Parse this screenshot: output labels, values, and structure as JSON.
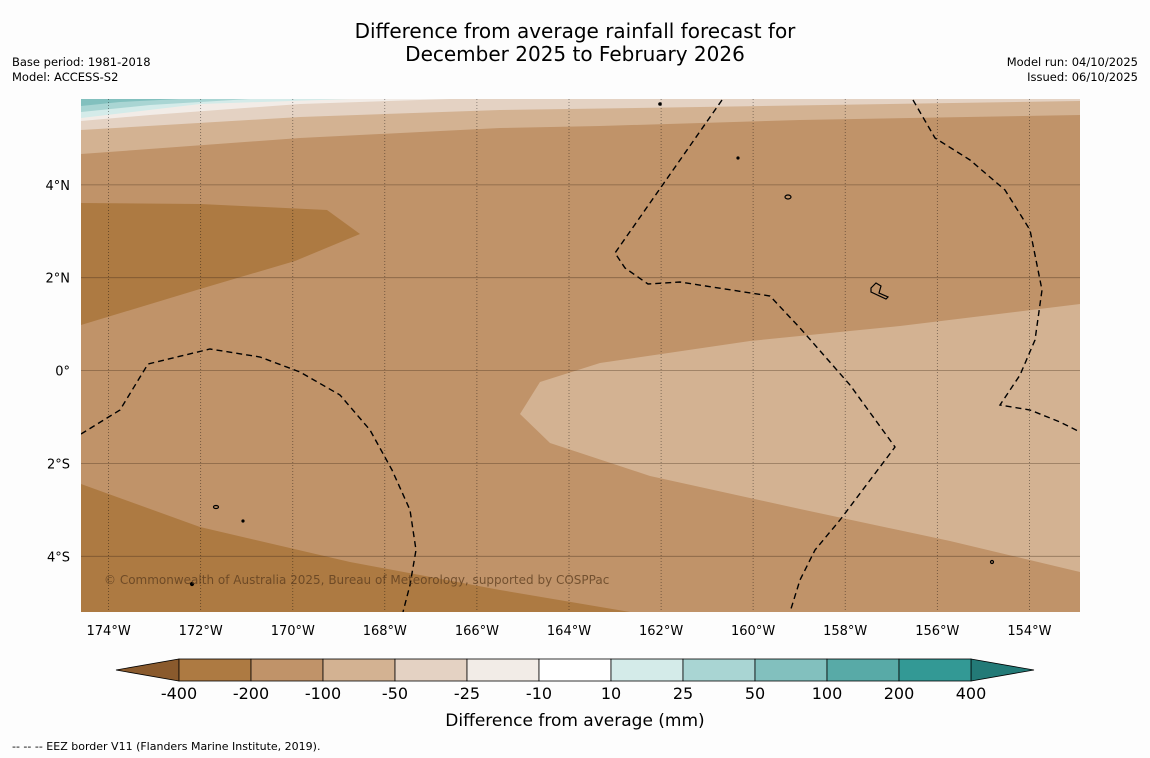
{
  "title": {
    "line1": "Difference from average rainfall forecast for",
    "line2": "December 2025 to February 2026"
  },
  "meta_left": {
    "base_period": "Base period: 1981-2018",
    "model": "Model: ACCESS-S2"
  },
  "meta_right": {
    "model_run": "Model run: 04/10/2025",
    "issued": "Issued: 06/10/2025"
  },
  "map": {
    "lon_range": [
      -174.6,
      -152.9
    ],
    "lat_range": [
      -5.2,
      5.85
    ],
    "lon_ticks": [
      {
        "value": -174,
        "label": "174°W"
      },
      {
        "value": -172,
        "label": "172°W"
      },
      {
        "value": -170,
        "label": "170°W"
      },
      {
        "value": -168,
        "label": "168°W"
      },
      {
        "value": -166,
        "label": "166°W"
      },
      {
        "value": -164,
        "label": "164°W"
      },
      {
        "value": -162,
        "label": "162°W"
      },
      {
        "value": -160,
        "label": "160°W"
      },
      {
        "value": -158,
        "label": "158°W"
      },
      {
        "value": -156,
        "label": "156°W"
      },
      {
        "value": -154,
        "label": "154°W"
      }
    ],
    "lat_ticks": [
      {
        "value": 4,
        "label": "4°N"
      },
      {
        "value": 2,
        "label": "2°N"
      },
      {
        "value": 0,
        "label": "0°"
      },
      {
        "value": -2,
        "label": "2°S"
      },
      {
        "value": -4,
        "label": "4°S"
      }
    ],
    "copyright": "© Commonwealth of Australia 2025, Bureau of Meteorology, supported by COSPPac",
    "colors": {
      "dry_200": "#ad7a42",
      "dry_100": "#c09369",
      "dry_50": "#d3b292",
      "dry_25": "#e4d2c3",
      "neutral": "#f2ece7",
      "wet_25": "#d4ebe9",
      "wet_50": "#a9d5d3",
      "wet_100": "#82c0be"
    }
  },
  "colorbar": {
    "title": "Difference from average (mm)",
    "boundaries": [
      "-400",
      "-200",
      "-100",
      "-50",
      "-25",
      "-10",
      "10",
      "25",
      "50",
      "100",
      "200",
      "400"
    ],
    "colors": [
      "#ad7a42",
      "#c09369",
      "#d3b292",
      "#e4d2c3",
      "#f2ece7",
      "#ffffff",
      "#d4ebe9",
      "#a9d5d3",
      "#82c0be",
      "#58aaa7",
      "#339995"
    ],
    "under_color": "#8a5a2d",
    "over_color": "#237a77"
  },
  "footer": "--  --  -- EEZ border V11 (Flanders Marine Institute, 2019)."
}
